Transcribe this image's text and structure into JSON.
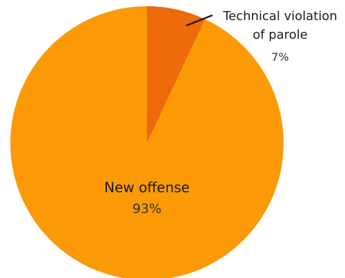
{
  "chart_data": {
    "type": "pie",
    "slices": [
      {
        "label_lines": [
          "Technical violation",
          "of parole"
        ],
        "value": 7,
        "value_label": "7%",
        "color": "#ee6a0b"
      },
      {
        "label_lines": [
          "New offense"
        ],
        "value": 93,
        "value_label": "93%",
        "color": "#fb9a06"
      }
    ],
    "legend": "none",
    "label_placement": "callout for small slice, inside for large slice"
  }
}
